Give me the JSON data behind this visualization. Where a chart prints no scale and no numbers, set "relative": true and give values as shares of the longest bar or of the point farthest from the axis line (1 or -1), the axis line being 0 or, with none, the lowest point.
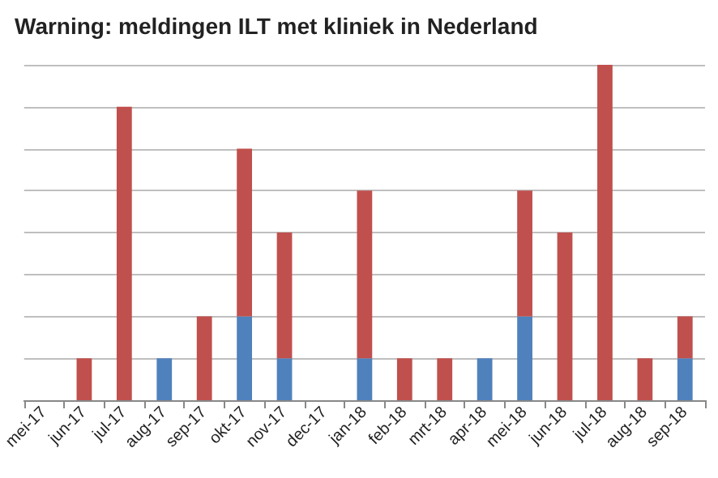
{
  "chart_data": {
    "type": "bar",
    "title": "Warning: meldingen ILT met kliniek in Nederland",
    "categories": [
      "mei-17",
      "jun-17",
      "jul-17",
      "aug-17",
      "sep-17",
      "okt-17",
      "nov-17",
      "dec-17",
      "jan-18",
      "feb-18",
      "mrt-18",
      "apr-18",
      "mei-18",
      "jun-18",
      "jul-18",
      "aug-18",
      "sep-18"
    ],
    "stacked": true,
    "relative": true,
    "grid": "y",
    "series": [
      {
        "color": "#4f81bd",
        "values": [
          0,
          0,
          0,
          0.125,
          0,
          0.25,
          0.125,
          0,
          0.125,
          0,
          0,
          0.125,
          0.25,
          0,
          0,
          0,
          0.125
        ]
      },
      {
        "color": "#c0504d",
        "values": [
          0,
          0.125,
          0.875,
          0,
          0.25,
          0.5,
          0.375,
          0,
          0.5,
          0.125,
          0.125,
          0,
          0.375,
          0.5,
          1,
          0.125,
          0.125
        ]
      }
    ]
  }
}
